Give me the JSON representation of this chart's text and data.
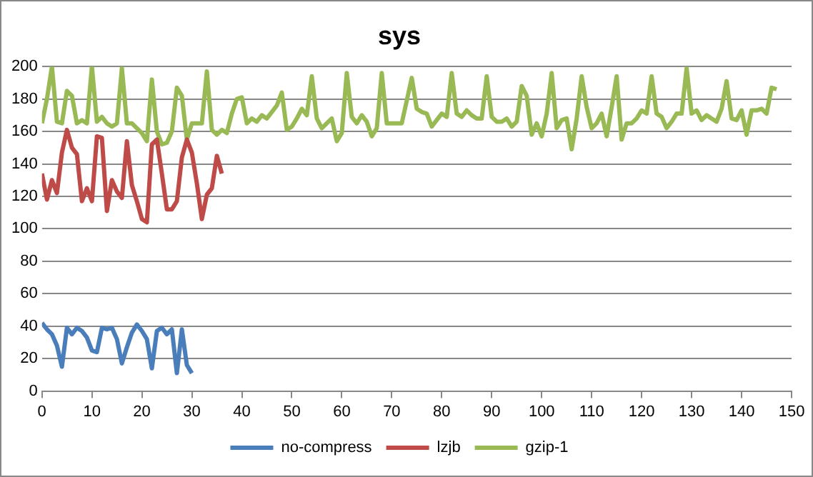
{
  "chart_data": {
    "type": "line",
    "title": "sys",
    "xlim": [
      0,
      150
    ],
    "xticks": [
      0,
      10,
      20,
      30,
      40,
      50,
      60,
      70,
      80,
      90,
      100,
      110,
      120,
      130,
      140,
      150
    ],
    "ylim": [
      0,
      200
    ],
    "yticks": [
      0,
      20,
      40,
      60,
      80,
      100,
      120,
      140,
      160,
      180,
      200
    ],
    "grid": "y",
    "legend": "bottom",
    "marker": "none",
    "line_style": "solid",
    "series": [
      {
        "name": "no-compress",
        "color": "#4a7ebb",
        "x": [
          0,
          1,
          2,
          3,
          4,
          5,
          6,
          7,
          8,
          9,
          10,
          11,
          12,
          13,
          14,
          15,
          16,
          17,
          18,
          19,
          20,
          21,
          22,
          23,
          24,
          25,
          26,
          27,
          28,
          29,
          30
        ],
        "values": [
          42,
          38,
          35,
          28,
          15,
          39,
          35,
          39,
          37,
          33,
          25,
          24,
          39,
          38,
          39,
          32,
          17,
          27,
          36,
          41,
          37,
          32,
          14,
          37,
          39,
          35,
          38,
          11,
          38,
          16,
          11
        ]
      },
      {
        "name": "lzjb",
        "color": "#be4b48",
        "x": [
          0,
          1,
          2,
          3,
          4,
          5,
          6,
          7,
          8,
          9,
          10,
          11,
          12,
          13,
          14,
          15,
          16,
          17,
          18,
          19,
          20,
          21,
          22,
          23,
          24,
          25,
          26,
          27,
          28,
          29,
          30,
          31,
          32,
          33,
          34,
          35,
          36
        ],
        "values": [
          134,
          118,
          130,
          122,
          147,
          161,
          150,
          146,
          117,
          125,
          117,
          157,
          156,
          111,
          130,
          123,
          119,
          154,
          127,
          117,
          106,
          104,
          152,
          155,
          134,
          112,
          112,
          117,
          144,
          155,
          147,
          128,
          106,
          121,
          125,
          145,
          134
        ]
      },
      {
        "name": "gzip-1",
        "color": "#98b954",
        "x": [
          0,
          1,
          2,
          3,
          4,
          5,
          6,
          7,
          8,
          9,
          10,
          11,
          12,
          13,
          14,
          15,
          16,
          17,
          18,
          19,
          20,
          21,
          22,
          23,
          24,
          25,
          26,
          27,
          28,
          29,
          30,
          31,
          32,
          33,
          34,
          35,
          36,
          37,
          38,
          39,
          40,
          41,
          42,
          43,
          44,
          45,
          46,
          47,
          48,
          49,
          50,
          51,
          52,
          53,
          54,
          55,
          56,
          57,
          58,
          59,
          60,
          61,
          62,
          63,
          64,
          65,
          66,
          67,
          68,
          69,
          70,
          71,
          72,
          73,
          74,
          75,
          76,
          77,
          78,
          79,
          80,
          81,
          82,
          83,
          84,
          85,
          86,
          87,
          88,
          89,
          90,
          91,
          92,
          93,
          94,
          95,
          96,
          97,
          98,
          99,
          100,
          101,
          102,
          103,
          104,
          105,
          106,
          107,
          108,
          109,
          110,
          111,
          112,
          113,
          114,
          115,
          116,
          117,
          118,
          119,
          120,
          121,
          122,
          123,
          124,
          125,
          126,
          127,
          128,
          129,
          130,
          131,
          132,
          133,
          134,
          135,
          136,
          137,
          138,
          139,
          140,
          141,
          142,
          143,
          144,
          145,
          146,
          147
        ],
        "values": [
          165,
          180,
          200,
          166,
          165,
          185,
          182,
          165,
          167,
          165,
          200,
          166,
          169,
          165,
          163,
          165,
          199,
          165,
          165,
          162,
          159,
          154,
          192,
          160,
          152,
          153,
          160,
          187,
          182,
          155,
          165,
          165,
          165,
          197,
          161,
          158,
          161,
          159,
          171,
          180,
          181,
          165,
          168,
          166,
          170,
          168,
          172,
          176,
          184,
          161,
          163,
          168,
          174,
          170,
          194,
          168,
          162,
          165,
          168,
          154,
          159,
          196,
          169,
          165,
          170,
          166,
          157,
          162,
          196,
          165,
          165,
          165,
          165,
          179,
          193,
          174,
          172,
          171,
          163,
          167,
          171,
          169,
          196,
          171,
          169,
          173,
          170,
          168,
          168,
          194,
          169,
          166,
          166,
          168,
          163,
          166,
          188,
          182,
          158,
          165,
          157,
          171,
          196,
          162,
          167,
          168,
          149,
          168,
          194,
          175,
          162,
          165,
          171,
          157,
          175,
          194,
          155,
          165,
          165,
          168,
          173,
          171,
          194,
          171,
          169,
          162,
          166,
          171,
          171,
          199,
          171,
          173,
          167,
          170,
          168,
          166,
          174,
          191,
          168,
          167,
          173,
          158,
          173,
          173,
          174,
          171,
          187,
          186
        ]
      }
    ]
  }
}
